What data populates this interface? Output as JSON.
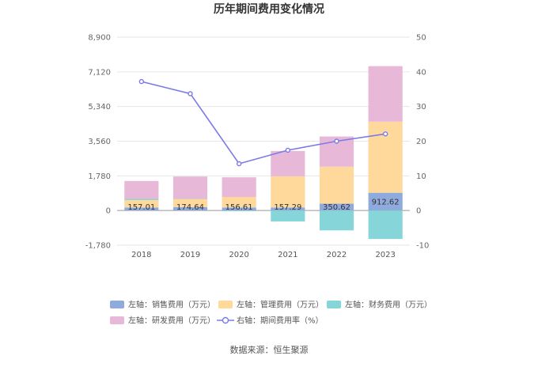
{
  "chart_data": {
    "type": "bar",
    "title": "历年期间费用变化情况",
    "categories": [
      "2018",
      "2019",
      "2020",
      "2021",
      "2022",
      "2023"
    ],
    "left_axis": {
      "ylim": [
        -1780,
        8900
      ],
      "ticks": [
        -1780,
        0,
        1780,
        3560,
        5340,
        7120,
        8900
      ],
      "tick_labels": [
        "-1,780",
        "0",
        "1,780",
        "3,560",
        "5,340",
        "7,120",
        "8,900"
      ]
    },
    "right_axis": {
      "ylim": [
        -10,
        50
      ],
      "ticks": [
        -10,
        0,
        10,
        20,
        30,
        40,
        50
      ],
      "tick_labels": [
        "-10",
        "0",
        "10",
        "20",
        "30",
        "40",
        "50"
      ]
    },
    "series": [
      {
        "name": "左轴：销售费用（万元）",
        "type": "bar",
        "axis": "left",
        "color": "#8faadc",
        "values": [
          157.01,
          174.64,
          156.61,
          157.29,
          350.62,
          912.62
        ],
        "labels": [
          "157.01",
          "174.64",
          "156.61",
          "157.29",
          "350.62",
          "912.62"
        ]
      },
      {
        "name": "左轴：管理费用（万元）",
        "type": "bar",
        "axis": "left",
        "color": "#ffd89b",
        "values": [
          380,
          420,
          540,
          1600,
          1900,
          3650
        ]
      },
      {
        "name": "左轴：财务费用（万元）",
        "type": "bar",
        "axis": "left",
        "color": "#86d6d9",
        "values": [
          60,
          20,
          -30,
          -560,
          -1020,
          -1460
        ]
      },
      {
        "name": "左轴：研发费用（万元）",
        "type": "bar",
        "axis": "left",
        "color": "#e8b8d8",
        "values": [
          920,
          1130,
          1010,
          1300,
          1550,
          2850
        ]
      },
      {
        "name": "右轴：期间费用率（%）",
        "type": "line",
        "axis": "right",
        "color": "#7b7be8",
        "values": [
          37.2,
          33.7,
          13.5,
          17.4,
          20.0,
          22.1
        ]
      }
    ],
    "grid": true,
    "legend_position": "bottom"
  },
  "source_text": "数据来源：恒生聚源"
}
